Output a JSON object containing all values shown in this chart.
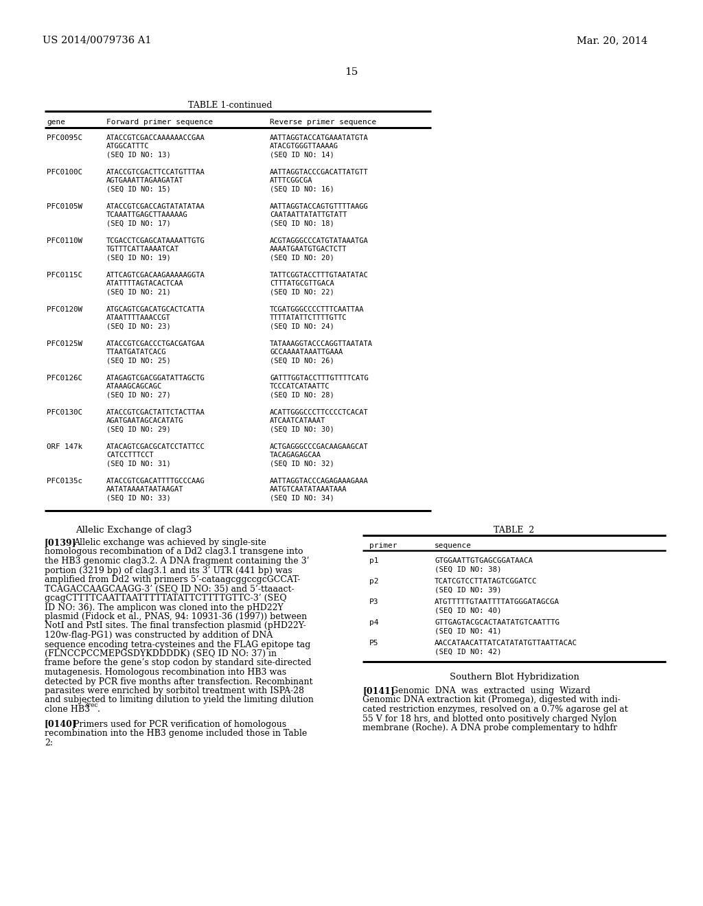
{
  "patent_left": "US 2014/0079736 A1",
  "patent_right": "Mar. 20, 2014",
  "page_number": "15",
  "table1_title": "TABLE 1-continued",
  "table1_headers": [
    "gene",
    "Forward primer sequence",
    "Reverse primer sequence"
  ],
  "table1_rows": [
    {
      "gene": "PFC0095C",
      "fwd": [
        "ATACCGTCGACCAAAAAACCGAA",
        "ATGGCATTTC",
        "(SEQ ID NO: 13)"
      ],
      "rev": [
        "AATTAGGTACCATGAAATATGTA",
        "ATACGTGGGTTAAAAG",
        "(SEQ ID NO: 14)"
      ]
    },
    {
      "gene": "PFC0100C",
      "fwd": [
        "ATACCGTCGACTTCCATGTTTAA",
        "AGTGAAATTAGAAGATAT",
        "(SEQ ID NO: 15)"
      ],
      "rev": [
        "AATTAGGTACCCGACATTATGTT",
        "ATTTCGGCGA",
        "(SEQ ID NO: 16)"
      ]
    },
    {
      "gene": "PFC0105W",
      "fwd": [
        "ATACCGTCGACCAGTATATATAA",
        "TCAAATTGAGCTTAAAAAG",
        "(SEQ ID NO: 17)"
      ],
      "rev": [
        "AATTAGGTACCAGTGTTTTAAGG",
        "CAATAATTATATTGTATT",
        "(SEQ ID NO: 18)"
      ]
    },
    {
      "gene": "PFC0110W",
      "fwd": [
        "TCGACCTCGAGCATAAAATTGTG",
        "TGTTTCATTAAAATCAT",
        "(SEQ ID NO: 19)"
      ],
      "rev": [
        "ACGTAGGGCCCATGTATAAATGA",
        "AAAATGAATGTGACTCTT",
        "(SEQ ID NO: 20)"
      ]
    },
    {
      "gene": "PFC0115C",
      "fwd": [
        "ATTCAGTCGACAAGAAAAAGGTA",
        "ATATTTTAGTACACTCAA",
        "(SEQ ID NO: 21)"
      ],
      "rev": [
        "TATTCGGTACCTTTGTAATATAC",
        "CTTTATGCGTTGACA",
        "(SEQ ID NO: 22)"
      ]
    },
    {
      "gene": "PFC0120W",
      "fwd": [
        "ATGCAGTCGACATGCACTCATTA",
        "ATAATTTTAAACCGT",
        "(SEQ ID NO: 23)"
      ],
      "rev": [
        "TCGATGGGCCCCTTTCAATTAA",
        "TTTTATATTCTTTTGTTC",
        "(SEQ ID NO: 24)"
      ]
    },
    {
      "gene": "PFC0125W",
      "fwd": [
        "ATACCGTCGACCCTGACGATGAA",
        "TTAATGATATCACG",
        "(SEQ ID NO: 25)"
      ],
      "rev": [
        "TATAAAGGTACCCAGGTTAATATA",
        "GCCAAAATAAATTGAAA",
        "(SEQ ID NO: 26)"
      ]
    },
    {
      "gene": "PFC0126C",
      "fwd": [
        "ATAGAGTCGACGGATATTAGCTG",
        "ATAAAGCAGCAGC",
        "(SEQ ID NO: 27)"
      ],
      "rev": [
        "GATTTGGTACCTTTGTTTTCATG",
        "TCCCATCATAATTC",
        "(SEQ ID NO: 28)"
      ]
    },
    {
      "gene": "PFC0130C",
      "fwd": [
        "ATACCGTCGACTATTCTACTTAA",
        "AGATGAATAGCACATATG",
        "(SEQ ID NO: 29)"
      ],
      "rev": [
        "ACATTGGGCCCTTCCCCTCACAT",
        "ATCAATCATAAAT",
        "(SEQ ID NO: 30)"
      ]
    },
    {
      "gene": "ORF 147k",
      "fwd": [
        "ATACAGTCGACGCATCCTATTCC",
        "CATCCTTTCCT",
        "(SEQ ID NO: 31)"
      ],
      "rev": [
        "ACTGAGGGCCCGACAAGAAGCAT",
        "TACAGAGAGCAA",
        "(SEQ ID NO: 32)"
      ]
    },
    {
      "gene": "PFC0135c",
      "fwd": [
        "ATACCGTCGACATTTTGCCCAAG",
        "AATATAAAATAATAAGAT",
        "(SEQ ID NO: 33)"
      ],
      "rev": [
        "AATTAGGTACCCAGAGAAAGAAA",
        "AATGTCAATATAAATAAA",
        "(SEQ ID NO: 34)"
      ]
    }
  ],
  "section_title_left": "Allelic Exchange of clag3",
  "section_title_right": "Southern Blot Hybridization",
  "para0139_bold": "[0139]",
  "para0139_lines": [
    "Allelic exchange was achieved by single-site",
    "homologous recombination of a Dd2 clag3.1 transgene into",
    "the HB3 genomic clag3.2. A DNA fragment containing the 3’",
    "portion (3219 bp) of clag3.1 and its 3’ UTR (441 bp) was",
    "amplified from Dd2 with primers 5’-cataagcggccgcGCCAT-",
    "TCAGACCAAGCAAGG-3’ (SEQ ID NO: 35) and 5’-ttaaact-",
    "gcagCTTTTCAATTAATTTTTATATTCTTTTGTTC-3’ (SEQ",
    "ID NO: 36). The amplicon was cloned into the pHD22Y",
    "plasmid (Fidock et al., PNAS, 94: 10931-36 (1997)) between",
    "NotI and PstI sites. The final transfection plasmid (pHD22Y-",
    "120w-flag-PG1) was constructed by addition of DNA",
    "sequence encoding tetra-cysteines and the FLAG epitope tag",
    "(FLNCCPCCMEPGSDYKDDDDK) (SEQ ID NO: 37) in",
    "frame before the gene’s stop codon by standard site-directed",
    "mutagenesis. Homologous recombination into HB3 was",
    "detected by PCR five months after transfection. Recombinant",
    "parasites were enriched by sorbitol treatment with ISPA-28",
    "and subjected to limiting dilution to yield the limiting dilution",
    "clone HB3"
  ],
  "para0139_super": "3rec",
  "para0139_end": ".",
  "para0140_bold": "[0140]",
  "para0140_lines": [
    "Primers used for PCR verification of homologous",
    "recombination into the HB3 genome included those in Table",
    "2:"
  ],
  "table2_title": "TABLE  2",
  "table2_headers": [
    "primer",
    "sequence"
  ],
  "table2_rows": [
    {
      "primer": "p1",
      "lines": [
        "GTGGAATTGTGAGCGGATAACA",
        "(SEQ ID NO: 38)"
      ]
    },
    {
      "primer": "p2",
      "lines": [
        "TCATCGTCCTTATAGTCGGATCC",
        "(SEQ ID NO: 39)"
      ]
    },
    {
      "primer": "P3",
      "lines": [
        "ATGTTTTTGTAATTTTATGGGATAGCGA",
        "(SEQ ID NO: 40)"
      ]
    },
    {
      "primer": "p4",
      "lines": [
        "GTTGAGTACGCACTAATATGTCAATTTG",
        "(SEQ ID NO: 41)"
      ]
    },
    {
      "primer": "P5",
      "lines": [
        "AACCATAACATTATCATATATGTTAATTACAC",
        "(SEQ ID NO: 42)"
      ]
    }
  ],
  "para0141_bold": "[0141]",
  "para0141_lines": [
    "Genomic  DNA  was  extracted  using  Wizard",
    "Genomic DNA extraction kit (Promega), digested with indi-",
    "cated restriction enzymes, resolved on a 0.7% agarose gel at",
    "55 V for 18 hrs, and blotted onto positively charged Nylon",
    "membrane (Roche). A DNA probe complementary to hdhfr"
  ]
}
